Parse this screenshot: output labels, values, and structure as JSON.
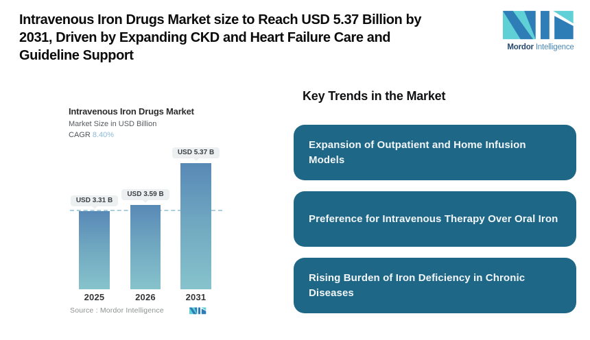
{
  "header": {
    "title": "Intravenous Iron Drugs Market size to Reach USD 5.37 Billion by 2031, Driven by Expanding CKD and Heart Failure Care and Guideline Support",
    "title_lines": [
      "Intravenous Iron Drugs Market size to Reach USD 5.37 Billion by",
      "2031, Driven by Expanding CKD and Heart Failure Care and",
      "Guideline Support"
    ]
  },
  "logo": {
    "brand": "Mordor",
    "brand_suffix": "Intelligence"
  },
  "chart": {
    "title": "Intravenous Iron Drugs Market",
    "subtitle": "Market Size in USD Billion",
    "cagr_label": "CAGR",
    "cagr_value": "8.40%",
    "source_label": "Source :  Mordor Intelligence"
  },
  "chart_data": {
    "type": "bar",
    "title": "Intravenous Iron Drugs Market",
    "subtitle": "Market Size in USD Billion",
    "cagr": "8.40%",
    "unit": "USD Billion",
    "categories": [
      "2025",
      "2026",
      "2031"
    ],
    "values": [
      3.31,
      3.59,
      5.37
    ],
    "value_labels": [
      "USD 3.31 B",
      "USD 3.59 B",
      "USD 5.37 B"
    ],
    "ylim": [
      0,
      6
    ],
    "reference_line": 3.31,
    "grid": false,
    "legend": "none",
    "source": "Mordor Intelligence"
  },
  "trends": {
    "heading": "Key Trends in the Market",
    "items": [
      "Expansion of Outpatient and Home Infusion Models",
      "Preference for Intravenous Therapy Over Oral Iron",
      "Rising Burden of Iron Deficiency in Chronic Diseases"
    ]
  },
  "colors": {
    "bar_gradient_top": "#5889b6",
    "bar_gradient_bottom": "#87c3cc",
    "trend_card_bg": "#1e6786",
    "dashed_line": "#aacfdf",
    "chip_bg": "#edf0f1",
    "logo_teal": "#5ed0d6",
    "logo_blue": "#2f7db6",
    "cagr_value_text": "#8cbad8"
  }
}
